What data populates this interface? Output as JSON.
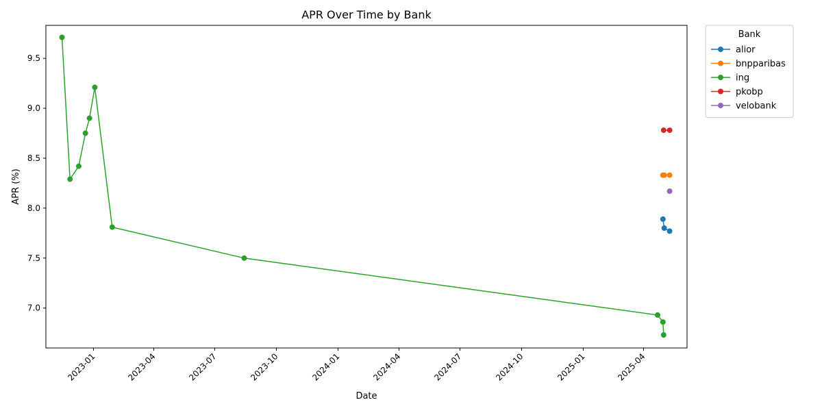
{
  "chart_data": {
    "type": "line",
    "title": "APR Over Time by Bank",
    "xlabel": "Date",
    "ylabel": "APR (%)",
    "x_type": "date",
    "xlim": [
      "2022-10-22",
      "2025-06-05"
    ],
    "ylim": [
      6.6,
      9.83
    ],
    "x_ticks": [
      "2023-01",
      "2023-04",
      "2023-07",
      "2023-10",
      "2024-01",
      "2024-04",
      "2024-07",
      "2024-10",
      "2025-01",
      "2025-04"
    ],
    "y_ticks": [
      7.0,
      7.5,
      8.0,
      8.5,
      9.0,
      9.5
    ],
    "y_tick_labels": [
      "7.0",
      "7.5",
      "8.0",
      "8.5",
      "9.0",
      "9.5"
    ],
    "grid": false,
    "marker": "circle",
    "legend": {
      "title": "Bank",
      "position": "outside-top-right"
    },
    "series": [
      {
        "name": "alior",
        "color": "#1f77b4",
        "points": [
          {
            "x": "2025-04-30",
            "y": 7.89
          },
          {
            "x": "2025-05-02",
            "y": 7.8
          },
          {
            "x": "2025-05-10",
            "y": 7.77
          }
        ]
      },
      {
        "name": "bnpparibas",
        "color": "#ff7f0e",
        "points": [
          {
            "x": "2025-04-30",
            "y": 8.33
          },
          {
            "x": "2025-05-02",
            "y": 8.33
          },
          {
            "x": "2025-05-10",
            "y": 8.33
          }
        ]
      },
      {
        "name": "ing",
        "color": "#2ca02c",
        "points": [
          {
            "x": "2022-11-15",
            "y": 9.71
          },
          {
            "x": "2022-11-27",
            "y": 8.29
          },
          {
            "x": "2022-12-10",
            "y": 8.42
          },
          {
            "x": "2022-12-20",
            "y": 8.75
          },
          {
            "x": "2022-12-26",
            "y": 8.9
          },
          {
            "x": "2023-01-03",
            "y": 9.21
          },
          {
            "x": "2023-01-29",
            "y": 7.81
          },
          {
            "x": "2023-08-14",
            "y": 7.5
          },
          {
            "x": "2025-04-22",
            "y": 6.93
          },
          {
            "x": "2025-04-30",
            "y": 6.86
          },
          {
            "x": "2025-05-01",
            "y": 6.73
          }
        ]
      },
      {
        "name": "pkobp",
        "color": "#d62728",
        "points": [
          {
            "x": "2025-05-01",
            "y": 8.78
          },
          {
            "x": "2025-05-10",
            "y": 8.78
          }
        ]
      },
      {
        "name": "velobank",
        "color": "#9467bd",
        "points": [
          {
            "x": "2025-05-10",
            "y": 8.17
          }
        ]
      }
    ]
  }
}
